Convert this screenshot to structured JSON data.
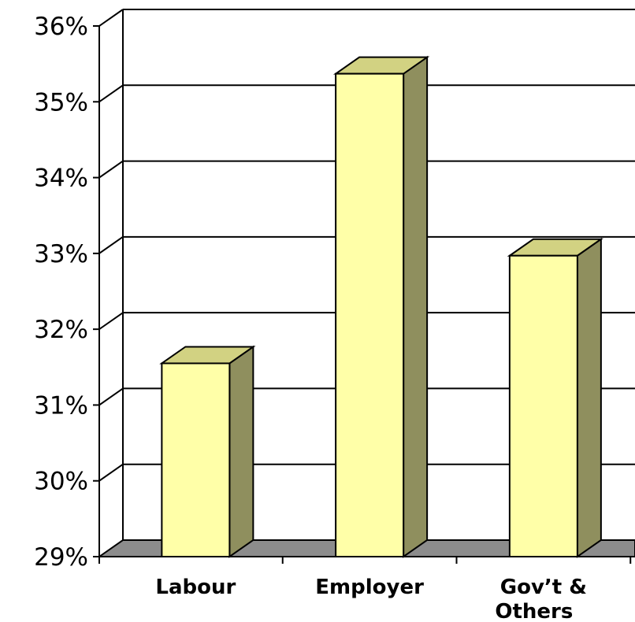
{
  "chart_data": {
    "type": "bar",
    "style": "3d-column",
    "categories": [
      [
        "Labour"
      ],
      [
        "Employer"
      ],
      [
        "Gov’t &",
        "Others"
      ]
    ],
    "values": [
      31.55,
      35.37,
      32.97
    ],
    "unit": "%",
    "ylim": [
      29,
      36
    ],
    "yticks": [
      "29%",
      "30%",
      "31%",
      "32%",
      "33%",
      "34%",
      "35%",
      "36%"
    ],
    "grid": true,
    "legend": "none",
    "title": "",
    "xlabel": "",
    "ylabel": ""
  },
  "colors": {
    "bar_front": "#ffffa8",
    "bar_top": "#d2d282",
    "bar_side": "#8f8f5e",
    "floor": "#8c8c8c",
    "grid": "#000000",
    "background": "#ffffff"
  }
}
